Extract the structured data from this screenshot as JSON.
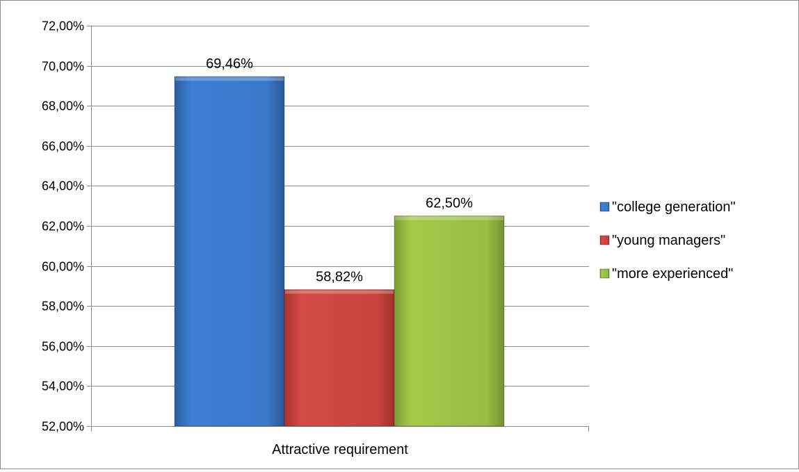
{
  "chart_data": {
    "type": "bar",
    "categories": [
      "Attractive requirement"
    ],
    "series": [
      {
        "name": "\"college generation\"",
        "values": [
          69.46
        ],
        "color": "#3a78c9",
        "label": "69,46%"
      },
      {
        "name": "\"young managers\"",
        "values": [
          58.82
        ],
        "color": "#c9433e",
        "label": "58,82%"
      },
      {
        "name": "\"more  experienced\"",
        "values": [
          62.5
        ],
        "color": "#98bb43",
        "label": "62,50%"
      }
    ],
    "ylim": [
      52,
      72
    ],
    "yticks": [
      52,
      54,
      56,
      58,
      60,
      62,
      64,
      66,
      68,
      70,
      72
    ],
    "ytick_labels": [
      "52,00%",
      "54,00%",
      "56,00%",
      "58,00%",
      "60,00%",
      "62,00%",
      "64,00%",
      "66,00%",
      "68,00%",
      "70,00%",
      "72,00%"
    ],
    "grid": true,
    "legend_position": "right"
  }
}
